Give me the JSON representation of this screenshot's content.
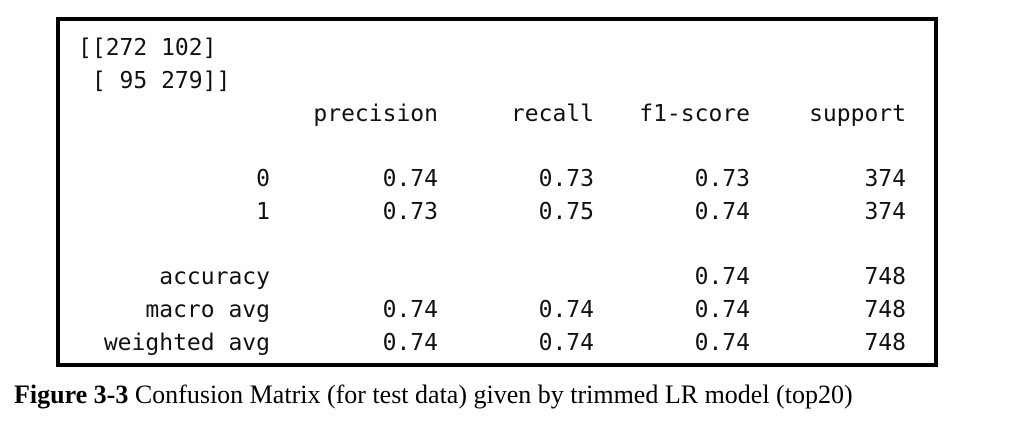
{
  "output": {
    "matrix_line1": "[[272 102]",
    "matrix_line2": " [ 95 279]]",
    "headers": [
      "precision",
      "recall",
      "f1-score",
      "support"
    ],
    "rows": [
      {
        "label": "0",
        "precision": "0.74",
        "recall": "0.73",
        "f1": "0.73",
        "support": "374"
      },
      {
        "label": "1",
        "precision": "0.73",
        "recall": "0.75",
        "f1": "0.74",
        "support": "374"
      },
      {
        "label": "accuracy",
        "precision": "",
        "recall": "",
        "f1": "0.74",
        "support": "748"
      },
      {
        "label": "macro avg",
        "precision": "0.74",
        "recall": "0.74",
        "f1": "0.74",
        "support": "748"
      },
      {
        "label": "weighted avg",
        "precision": "0.74",
        "recall": "0.74",
        "f1": "0.74",
        "support": "748"
      }
    ]
  },
  "caption": {
    "label": "Figure 3-3",
    "text": " Confusion Matrix (for test data) given by trimmed LR model (top20)"
  }
}
